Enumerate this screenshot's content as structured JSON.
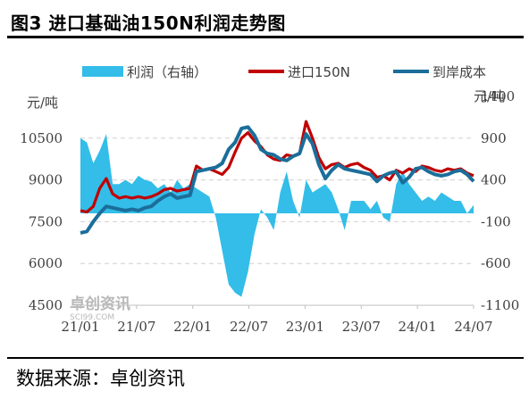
{
  "figure": {
    "title": "图3 进口基础油150N利润走势图",
    "source": "数据来源：卓创资讯",
    "watermark": {
      "cn": "卓创资讯",
      "en": "SCI99.COM"
    }
  },
  "chart_data": {
    "type": "line",
    "left_axis": {
      "unit": "元/吨",
      "ticks": [
        "4500",
        "6000",
        "7500",
        "9000",
        "10500"
      ],
      "ylim": [
        4500,
        12000
      ]
    },
    "right_axis": {
      "unit": "元/吨",
      "ticks": [
        "-1100",
        "-600",
        "-100",
        "400",
        "900",
        "1400"
      ],
      "ylim": [
        -1100,
        1400
      ]
    },
    "x_ticks": [
      "21/01",
      "21/07",
      "22/01",
      "22/07",
      "23/01",
      "23/07",
      "24/01",
      "24/07"
    ],
    "grid": "horizontal-dashed",
    "legend": {
      "position": "top",
      "items": [
        {
          "name": "利润（右轴）",
          "kind": "area",
          "color": "#33bde8"
        },
        {
          "name": "进口150N",
          "kind": "line",
          "color": "#c00000"
        },
        {
          "name": "到岸成本",
          "kind": "line",
          "color": "#1b6e9a"
        }
      ]
    },
    "series": [
      {
        "name": "进口150N",
        "axis": "left",
        "color": "#c00000",
        "values": [
          [
            0,
            7900
          ],
          [
            1,
            7850
          ],
          [
            2,
            8050
          ],
          [
            3,
            8700
          ],
          [
            4,
            9050
          ],
          [
            5,
            8500
          ],
          [
            6,
            8350
          ],
          [
            7,
            8400
          ],
          [
            8,
            8350
          ],
          [
            9,
            8400
          ],
          [
            10,
            8350
          ],
          [
            11,
            8400
          ],
          [
            12,
            8500
          ],
          [
            13,
            8650
          ],
          [
            14,
            8700
          ],
          [
            15,
            8600
          ],
          [
            16,
            8650
          ],
          [
            17,
            8700
          ],
          [
            18,
            9500
          ],
          [
            19,
            9350
          ],
          [
            20,
            9400
          ],
          [
            21,
            9300
          ],
          [
            22,
            9200
          ],
          [
            23,
            9450
          ],
          [
            24,
            10000
          ],
          [
            25,
            10500
          ],
          [
            26,
            10700
          ],
          [
            27,
            10400
          ],
          [
            28,
            10200
          ],
          [
            29,
            9900
          ],
          [
            30,
            9750
          ],
          [
            31,
            9700
          ],
          [
            32,
            9900
          ],
          [
            33,
            9850
          ],
          [
            34,
            9950
          ],
          [
            35,
            11100
          ],
          [
            36,
            10500
          ],
          [
            37,
            9800
          ],
          [
            38,
            9400
          ],
          [
            39,
            9550
          ],
          [
            40,
            9600
          ],
          [
            41,
            9450
          ],
          [
            42,
            9550
          ],
          [
            43,
            9600
          ],
          [
            44,
            9450
          ],
          [
            45,
            9350
          ],
          [
            46,
            9100
          ],
          [
            47,
            9150
          ],
          [
            48,
            9000
          ],
          [
            49,
            9350
          ],
          [
            50,
            9250
          ],
          [
            51,
            9400
          ],
          [
            52,
            9300
          ],
          [
            53,
            9500
          ],
          [
            54,
            9450
          ],
          [
            55,
            9350
          ],
          [
            56,
            9300
          ],
          [
            57,
            9400
          ],
          [
            58,
            9350
          ],
          [
            59,
            9400
          ],
          [
            60,
            9250
          ],
          [
            61,
            9150
          ]
        ]
      },
      {
        "name": "到岸成本",
        "axis": "left",
        "color": "#1b6e9a",
        "values": [
          [
            0,
            7100
          ],
          [
            1,
            7150
          ],
          [
            2,
            7500
          ],
          [
            3,
            7800
          ],
          [
            4,
            8050
          ],
          [
            5,
            8000
          ],
          [
            6,
            7950
          ],
          [
            7,
            7900
          ],
          [
            8,
            7950
          ],
          [
            9,
            7900
          ],
          [
            10,
            8000
          ],
          [
            11,
            8050
          ],
          [
            12,
            8250
          ],
          [
            13,
            8400
          ],
          [
            14,
            8500
          ],
          [
            15,
            8350
          ],
          [
            16,
            8400
          ],
          [
            17,
            8450
          ],
          [
            18,
            9300
          ],
          [
            19,
            9350
          ],
          [
            20,
            9400
          ],
          [
            21,
            9450
          ],
          [
            22,
            9600
          ],
          [
            23,
            10100
          ],
          [
            24,
            10350
          ],
          [
            25,
            10850
          ],
          [
            26,
            10900
          ],
          [
            27,
            10600
          ],
          [
            28,
            10100
          ],
          [
            29,
            9950
          ],
          [
            30,
            9900
          ],
          [
            31,
            9750
          ],
          [
            32,
            9700
          ],
          [
            33,
            9850
          ],
          [
            34,
            9950
          ],
          [
            35,
            10650
          ],
          [
            36,
            10300
          ],
          [
            37,
            9550
          ],
          [
            38,
            9050
          ],
          [
            39,
            9350
          ],
          [
            40,
            9550
          ],
          [
            41,
            9400
          ],
          [
            42,
            9350
          ],
          [
            43,
            9300
          ],
          [
            44,
            9250
          ],
          [
            45,
            9200
          ],
          [
            46,
            8950
          ],
          [
            47,
            9150
          ],
          [
            48,
            9250
          ],
          [
            49,
            9300
          ],
          [
            50,
            8900
          ],
          [
            51,
            9100
          ],
          [
            52,
            9400
          ],
          [
            53,
            9450
          ],
          [
            54,
            9300
          ],
          [
            55,
            9200
          ],
          [
            56,
            9150
          ],
          [
            57,
            9200
          ],
          [
            58,
            9300
          ],
          [
            59,
            9350
          ],
          [
            60,
            9200
          ],
          [
            61,
            8950
          ]
        ]
      },
      {
        "name": "利润（右轴）",
        "axis": "right",
        "color": "#33bde8",
        "kind": "area",
        "values": [
          [
            0,
            900
          ],
          [
            1,
            850
          ],
          [
            2,
            600
          ],
          [
            3,
            750
          ],
          [
            4,
            950
          ],
          [
            5,
            350
          ],
          [
            6,
            350
          ],
          [
            7,
            400
          ],
          [
            8,
            350
          ],
          [
            9,
            450
          ],
          [
            10,
            400
          ],
          [
            11,
            380
          ],
          [
            12,
            300
          ],
          [
            13,
            350
          ],
          [
            14,
            250
          ],
          [
            15,
            400
          ],
          [
            16,
            300
          ],
          [
            17,
            350
          ],
          [
            18,
            300
          ],
          [
            19,
            250
          ],
          [
            20,
            200
          ],
          [
            21,
            -50
          ],
          [
            22,
            -450
          ],
          [
            23,
            -850
          ],
          [
            24,
            -950
          ],
          [
            25,
            -1000
          ],
          [
            26,
            -700
          ],
          [
            27,
            -250
          ],
          [
            28,
            50
          ],
          [
            29,
            -50
          ],
          [
            30,
            -200
          ],
          [
            31,
            250
          ],
          [
            32,
            500
          ],
          [
            33,
            150
          ],
          [
            34,
            -50
          ],
          [
            35,
            400
          ],
          [
            36,
            250
          ],
          [
            37,
            300
          ],
          [
            38,
            350
          ],
          [
            39,
            250
          ],
          [
            40,
            50
          ],
          [
            41,
            -200
          ],
          [
            42,
            150
          ],
          [
            43,
            150
          ],
          [
            44,
            150
          ],
          [
            45,
            50
          ],
          [
            46,
            150
          ],
          [
            47,
            -50
          ],
          [
            48,
            -100
          ],
          [
            49,
            350
          ],
          [
            50,
            500
          ],
          [
            51,
            350
          ],
          [
            52,
            250
          ],
          [
            53,
            150
          ],
          [
            54,
            200
          ],
          [
            55,
            150
          ],
          [
            56,
            250
          ],
          [
            57,
            200
          ],
          [
            58,
            150
          ],
          [
            59,
            150
          ],
          [
            60,
            0
          ],
          [
            61,
            100
          ]
        ]
      }
    ]
  }
}
